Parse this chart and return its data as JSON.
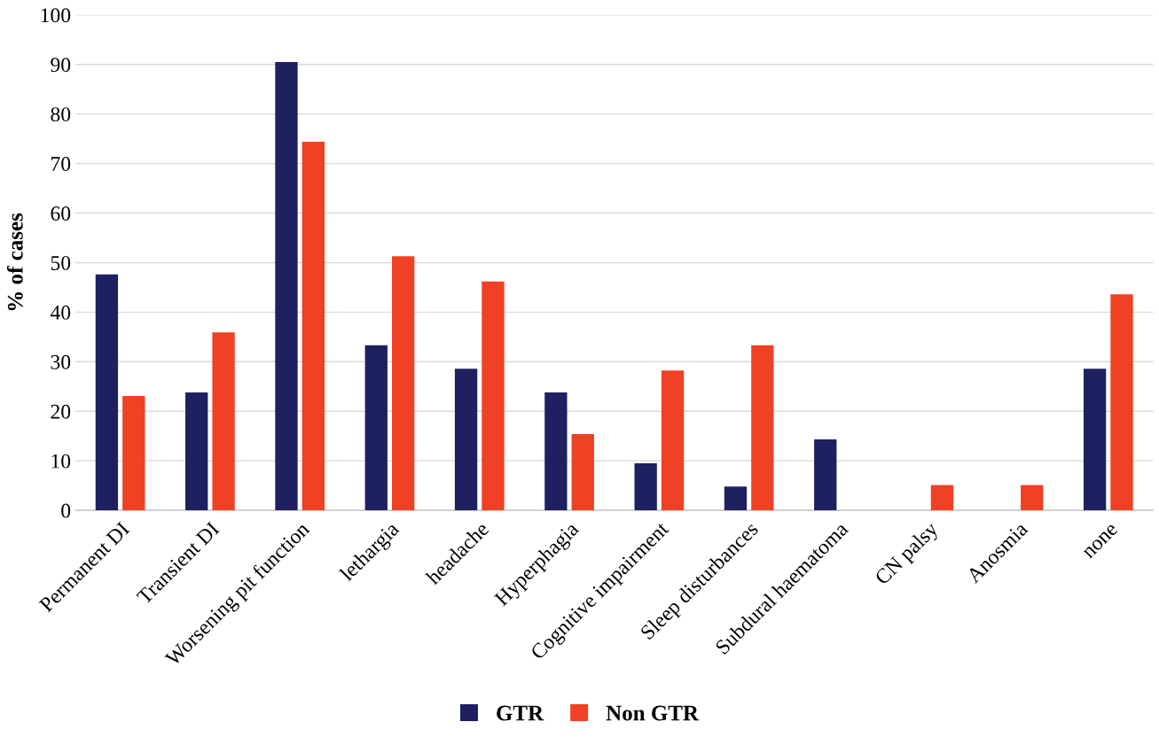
{
  "chart_data": {
    "type": "bar",
    "ylabel": "% of cases",
    "categories": [
      "Permanent DI",
      "Transient DI",
      "Worsening pit function",
      "lethargia",
      "headache",
      "Hyperphagia",
      "Cognitive impairment",
      "Sleep disturbances",
      "Subdural haematoma",
      "CN palsy",
      "Anosmia",
      "none"
    ],
    "series": [
      {
        "name": "GTR",
        "color": "#1f2060",
        "values": [
          47.6,
          23.8,
          90.5,
          33.3,
          28.6,
          23.8,
          9.5,
          4.8,
          14.3,
          0,
          0,
          28.6
        ]
      },
      {
        "name": "Non GTR",
        "color": "#ef4123",
        "values": [
          23.1,
          35.9,
          74.4,
          51.3,
          46.2,
          15.4,
          28.2,
          33.3,
          0,
          5.1,
          5.1,
          43.6
        ]
      }
    ],
    "ylim": [
      0,
      100
    ],
    "yticks": [
      0,
      10,
      20,
      30,
      40,
      50,
      60,
      70,
      80,
      90,
      100
    ],
    "grid": "y",
    "legend": "bottom"
  }
}
